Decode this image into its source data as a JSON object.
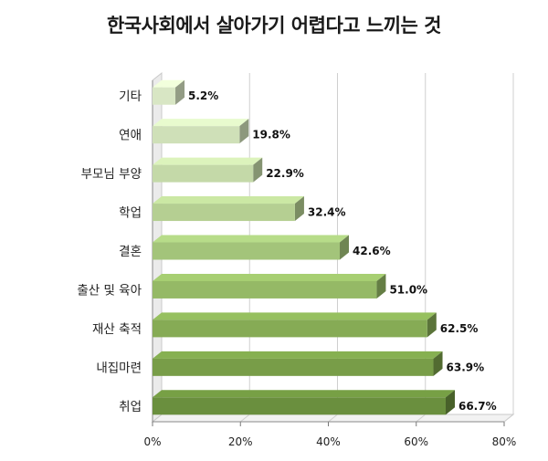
{
  "chart_data": {
    "type": "bar",
    "orientation": "horizontal",
    "title": "한국사회에서 살아가기 어렵다고 느끼는 것",
    "categories": [
      "기타",
      "연애",
      "부모님 부양",
      "학업",
      "결혼",
      "출산 및 육아",
      "재산 축적",
      "내집마련",
      "취업"
    ],
    "values": [
      5.2,
      19.8,
      22.9,
      32.4,
      42.6,
      51.0,
      62.5,
      63.9,
      66.7
    ],
    "value_labels": [
      "5.2%",
      "19.8%",
      "22.9%",
      "32.4%",
      "42.6%",
      "51.0%",
      "62.5%",
      "63.9%",
      "66.7%"
    ],
    "xlim": [
      0,
      80
    ],
    "x_ticks": [
      "0%",
      "20%",
      "40%",
      "60%",
      "80%"
    ],
    "grid": true,
    "bar_colors": [
      "#d8e6c4",
      "#cfe0b8",
      "#c4d9a8",
      "#b5cf92",
      "#a3c47a",
      "#95b966",
      "#86ab55",
      "#789d48",
      "#6a8f3e"
    ]
  }
}
